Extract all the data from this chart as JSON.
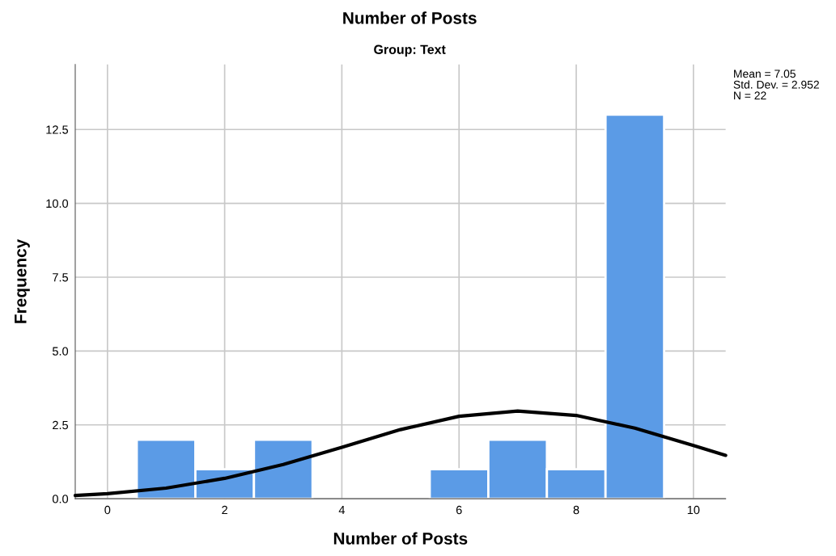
{
  "chart_data": {
    "type": "histogram",
    "title": "Number of Posts",
    "subtitle": "Group: Text",
    "xlabel": "Number of Posts",
    "ylabel": "Frequency",
    "bins": [
      0.5,
      1.5,
      2.5,
      3.5,
      4.5,
      5.5,
      6.5,
      7.5,
      8.5,
      9.5
    ],
    "values": [
      2,
      1,
      2,
      0,
      0,
      1,
      2,
      1,
      13
    ],
    "color": "#5b9be6",
    "series": [
      {
        "type": "line",
        "color": "#000000",
        "x": [
          -0.55,
          0,
          1,
          2,
          3,
          4,
          5,
          6,
          7,
          8,
          9,
          10,
          10.55
        ],
        "values": [
          0.11,
          0.17,
          0.36,
          0.69,
          1.16,
          1.74,
          2.34,
          2.79,
          2.97,
          2.82,
          2.39,
          1.8,
          1.47
        ]
      }
    ],
    "xlim": [
      -0.55,
      10.55
    ],
    "ylim": [
      0,
      14.7
    ],
    "xticks": [
      0,
      2,
      4,
      6,
      8,
      10
    ],
    "yticks": [
      {
        "value": 0,
        "label": "0.0"
      },
      {
        "value": 2.5,
        "label": "2.5"
      },
      {
        "value": 5,
        "label": "5.0"
      },
      {
        "value": 7.5,
        "label": "7.5"
      },
      {
        "value": 10,
        "label": "10.0"
      },
      {
        "value": 12.5,
        "label": "12.5"
      }
    ],
    "grid": true,
    "annotations": [
      "Mean = 7.05",
      "Std. Dev. = 2.952",
      "N = 22"
    ]
  }
}
